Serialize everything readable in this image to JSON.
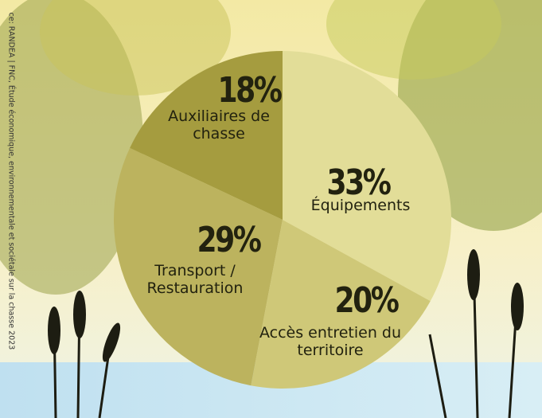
{
  "chart_data": {
    "type": "pie",
    "categories": [
      "Équipements",
      "Accès entretien du territoire",
      "Transport / Restauration",
      "Auxiliaires de chasse"
    ],
    "values": [
      33,
      20,
      29,
      18
    ],
    "value_labels": [
      "33%",
      "20%",
      "29%",
      "18%"
    ],
    "colors": [
      "#e2dd98",
      "#cfc878",
      "#bcb35e",
      "#a59c3f"
    ],
    "source": "ce: RANDEA | FNC, Étude économique, environnementale et sociétale sur la chasse 2023"
  }
}
